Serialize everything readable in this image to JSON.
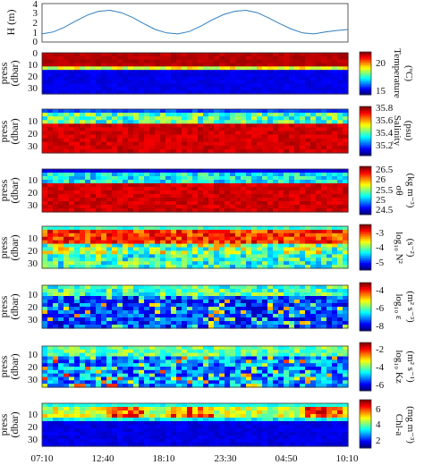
{
  "chart_data": [
    {
      "type": "line",
      "ylabel": "H (m)",
      "ylim": [
        0,
        4
      ],
      "yticks": [
        "0",
        "1",
        "2",
        "3",
        "4"
      ],
      "series": [
        {
          "color": "#2f7fc1",
          "x_hours": [
            0,
            1,
            2,
            3,
            4,
            5,
            6,
            7,
            8,
            9,
            10,
            11,
            12,
            13,
            14,
            15,
            16,
            17,
            18,
            19,
            20,
            21,
            22,
            23,
            24,
            25,
            26,
            27
          ],
          "values": [
            0.85,
            1.05,
            1.55,
            2.2,
            2.8,
            3.2,
            3.3,
            3.05,
            2.55,
            1.9,
            1.3,
            0.95,
            0.85,
            1.1,
            1.65,
            2.3,
            2.85,
            3.2,
            3.3,
            3.05,
            2.5,
            1.9,
            1.35,
            0.95,
            0.85,
            1.05,
            1.2,
            1.3
          ]
        }
      ]
    },
    {
      "type": "heatmap",
      "variable": "temperature",
      "ylabel": [
        "press",
        "(dbar)"
      ],
      "yticks": [
        "0",
        "10",
        "20",
        "30"
      ],
      "colorbar_label": [
        "Temperature",
        "(ºC)"
      ],
      "colorbar_ticks": [
        "15",
        "20"
      ],
      "colorbar_range": [
        14,
        22
      ]
    },
    {
      "type": "heatmap",
      "variable": "salinity",
      "ylabel": [
        "press",
        "(dbar)"
      ],
      "yticks": [
        "10",
        "20",
        "30"
      ],
      "colorbar_label": [
        "Salinity",
        "(psu)"
      ],
      "colorbar_ticks": [
        "35.2",
        "35.4",
        "35.6",
        "35.8"
      ],
      "colorbar_range": [
        35.1,
        35.85
      ]
    },
    {
      "type": "heatmap",
      "variable": "sigma_theta",
      "ylabel": [
        "press",
        "(dbar)"
      ],
      "yticks": [
        "10",
        "20",
        "30"
      ],
      "colorbar_label": [
        "σθ",
        "(kg m⁻³)"
      ],
      "colorbar_ticks": [
        "24.5",
        "25",
        "25.5",
        "26",
        "26.5"
      ],
      "colorbar_range": [
        24.4,
        26.7
      ]
    },
    {
      "type": "heatmap",
      "variable": "log10_N2",
      "ylabel": [
        "press",
        "(dbar)"
      ],
      "yticks": [
        "10",
        "20",
        "30"
      ],
      "colorbar_label": [
        "log₁₀ N²",
        "(s⁻²)"
      ],
      "colorbar_ticks": [
        "-3",
        "-4",
        "-5"
      ],
      "colorbar_range": [
        -5.5,
        -2.5
      ]
    },
    {
      "type": "heatmap",
      "variable": "log10_epsilon",
      "ylabel": [
        "press",
        "(dbar)"
      ],
      "yticks": [
        "10",
        "20",
        "30"
      ],
      "colorbar_label": [
        "log₁₀ ε",
        "(m² s⁻³)"
      ],
      "colorbar_ticks": [
        "-4",
        "-6",
        "-8"
      ],
      "colorbar_range": [
        -8.8,
        -3.8
      ]
    },
    {
      "type": "heatmap",
      "variable": "log10_Kz",
      "ylabel": [
        "press",
        "(dbar)"
      ],
      "yticks": [
        "10",
        "20",
        "30"
      ],
      "colorbar_label": [
        "log₁₀ Kz",
        "(m² s⁻¹)"
      ],
      "colorbar_ticks": [
        "-2",
        "-4",
        "-6"
      ],
      "colorbar_range": [
        -6.5,
        -1.5
      ]
    },
    {
      "type": "heatmap",
      "variable": "chl_a",
      "ylabel": [
        "press",
        "(dbar)"
      ],
      "yticks": [
        "10",
        "20",
        "30"
      ],
      "colorbar_label": [
        "Chl-a",
        "(mg m⁻³)"
      ],
      "colorbar_ticks": [
        "2",
        "4",
        "6"
      ],
      "colorbar_range": [
        0.8,
        7.2
      ],
      "xticks": [
        "07:10",
        "12:40",
        "18:10",
        "23:30",
        "04:50",
        "10:10"
      ]
    }
  ]
}
